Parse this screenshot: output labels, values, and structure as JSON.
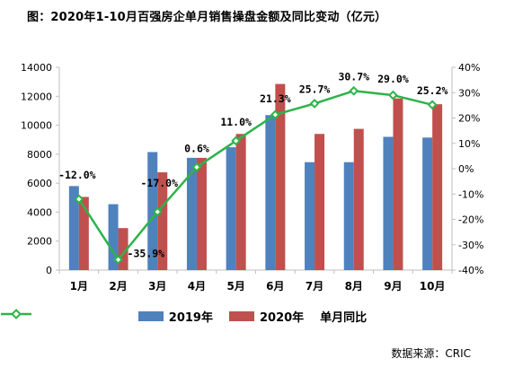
{
  "title": "图：2020年1-10月百强房企单月销售操盘金额及同比变动（亿元）",
  "source": "数据来源：CRIC",
  "colors": {
    "s2019": "#4f81bd",
    "s2020": "#c0504d",
    "yoy": "#2eb34a",
    "axis": "#bfbfbf"
  },
  "legend": {
    "s2019": "2019年",
    "s2020": "2020年",
    "yoy": "单月同比"
  },
  "chart_data": {
    "type": "bar+line",
    "categories": [
      "1月",
      "2月",
      "3月",
      "4月",
      "5月",
      "6月",
      "7月",
      "8月",
      "9月",
      "10月"
    ],
    "series": [
      {
        "name": "2019年",
        "type": "bar",
        "axis": "left",
        "values": [
          5800,
          4550,
          8150,
          7750,
          8480,
          10700,
          7450,
          7450,
          9200,
          9150
        ]
      },
      {
        "name": "2020年",
        "type": "bar",
        "axis": "left",
        "values": [
          5050,
          2900,
          6750,
          7750,
          9400,
          12850,
          9400,
          9750,
          11850,
          11450
        ]
      },
      {
        "name": "单月同比",
        "type": "line",
        "axis": "right",
        "values": [
          -12.0,
          -35.9,
          -17.0,
          0.6,
          11.0,
          21.3,
          25.7,
          30.7,
          29.0,
          25.2
        ],
        "labels": [
          "-12.0%",
          "-35.9%",
          "-17.0%",
          "0.6%",
          "11.0%",
          "21.3%",
          "25.7%",
          "30.7%",
          "29.0%",
          "25.2%"
        ]
      }
    ],
    "y_left": {
      "range": [
        0,
        14000
      ],
      "ticks": [
        "0",
        "2000",
        "4000",
        "6000",
        "8000",
        "10000",
        "12000",
        "14000"
      ]
    },
    "y_right": {
      "range": [
        -40,
        40
      ],
      "ticks": [
        "-40%",
        "-30%",
        "-20%",
        "-10%",
        "0%",
        "10%",
        "20%",
        "30%",
        "40%"
      ]
    },
    "grid": false,
    "legend_position": "bottom"
  }
}
